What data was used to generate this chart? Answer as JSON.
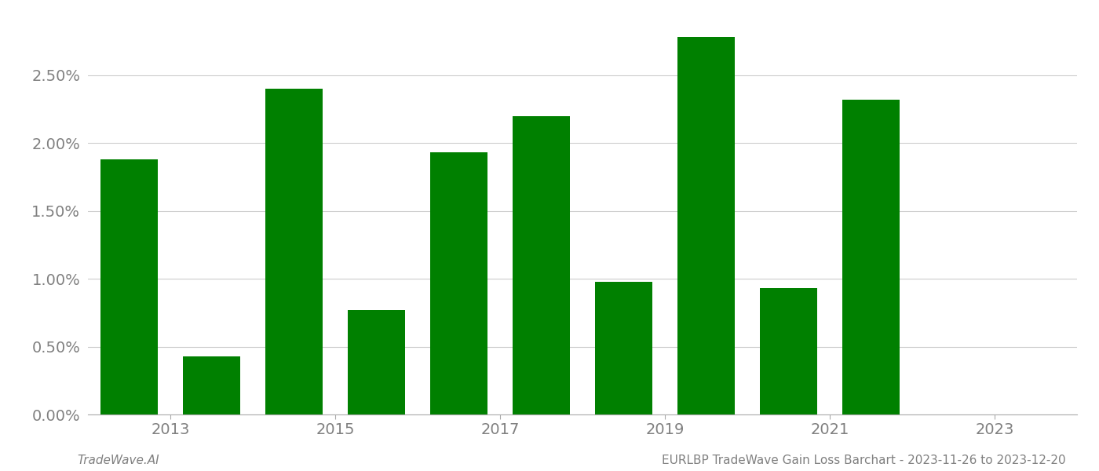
{
  "years": [
    2013,
    2014,
    2015,
    2016,
    2017,
    2018,
    2019,
    2020,
    2021,
    2022,
    2023
  ],
  "values": [
    0.0188,
    0.0043,
    0.024,
    0.0077,
    0.0193,
    0.022,
    0.0098,
    0.0278,
    0.0093,
    0.0232,
    0.0
  ],
  "bar_color": "#008000",
  "ylim": [
    0,
    0.0295
  ],
  "yticks": [
    0.0,
    0.005,
    0.01,
    0.015,
    0.02,
    0.025
  ],
  "ytick_labels": [
    "0.00%",
    "0.50%",
    "1.00%",
    "1.50%",
    "2.00%",
    "2.50%"
  ],
  "background_color": "#ffffff",
  "grid_color": "#cccccc",
  "text_color": "#808080",
  "footer_left": "TradeWave.AI",
  "footer_right": "EURLBP TradeWave Gain Loss Barchart - 2023-11-26 to 2023-12-20"
}
